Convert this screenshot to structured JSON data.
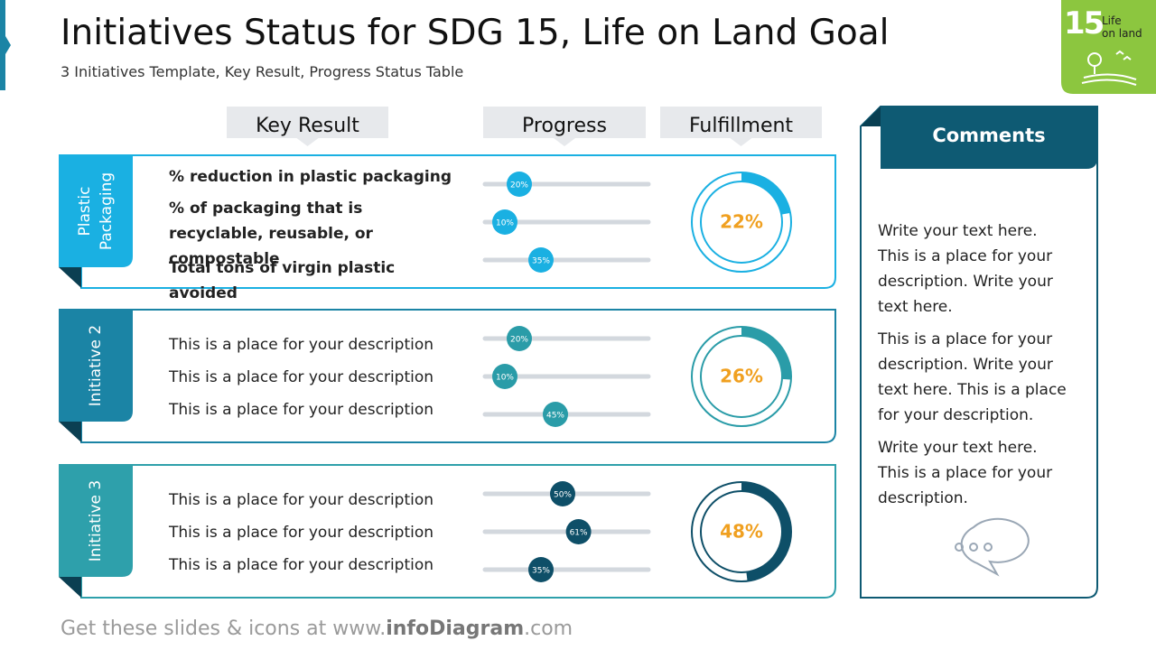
{
  "header": {
    "title": "Initiatives Status for SDG 15, Life on Land Goal",
    "subtitle": "3 Initiatives Template, Key Result, Progress Status Table"
  },
  "badge": {
    "number": "15",
    "lines": [
      "Life",
      "on land"
    ]
  },
  "columns": [
    "Key Result",
    "Progress",
    "Fulfillment"
  ],
  "rows": [
    {
      "label": [
        "Plastic",
        "Packaging"
      ],
      "color": "#1ab0e2",
      "knob": "#1ab0e2",
      "results": [
        {
          "text": "% reduction in plastic packaging",
          "progress": {
            "value": 20,
            "label": "20%"
          }
        },
        {
          "text": "% of packaging that is recyclable, reusable, or compostable",
          "progress": {
            "value": 10,
            "label": "10%"
          }
        },
        {
          "text": "Total tons of virgin plastic avoided",
          "progress": {
            "value": 35,
            "label": "35%"
          }
        }
      ],
      "fulfillment": {
        "value": 22,
        "label": "22%"
      }
    },
    {
      "label": [
        "Initiative 2"
      ],
      "color": "#1b84a5",
      "knob": "#2a9ca8",
      "results": [
        {
          "text": "This is a place for your description",
          "progress": {
            "value": 20,
            "label": "20%"
          }
        },
        {
          "text": "This is a place for your description",
          "progress": {
            "value": 10,
            "label": "10%"
          }
        },
        {
          "text": "This is a place for your description",
          "progress": {
            "value": 45,
            "label": "45%"
          }
        }
      ],
      "fulfillment": {
        "value": 26,
        "label": "26%"
      }
    },
    {
      "label": [
        "Initiative 3"
      ],
      "color": "#2ea0ab",
      "knob": "#0e4f68",
      "results": [
        {
          "text": "This is a place for your description",
          "progress": {
            "value": 50,
            "label": "50%"
          }
        },
        {
          "text": "This is a place for your description",
          "progress": {
            "value": 61,
            "label": "61%"
          }
        },
        {
          "text": "This is a place for your description",
          "progress": {
            "value": 35,
            "label": "35%"
          }
        }
      ],
      "fulfillment": {
        "value": 48,
        "label": "48%"
      }
    }
  ],
  "comments": {
    "title": "Comments",
    "paragraphs": [
      "Write your text here. This is a place for your description. Write your text here.",
      "This is a place for your description. Write your text here. This is a place for your description.",
      "Write your text here. This is a place for your description."
    ]
  },
  "footer": {
    "prefix": "Get these slides & icons at www.",
    "brand": "infoDiagram",
    "suffix": ".com"
  }
}
